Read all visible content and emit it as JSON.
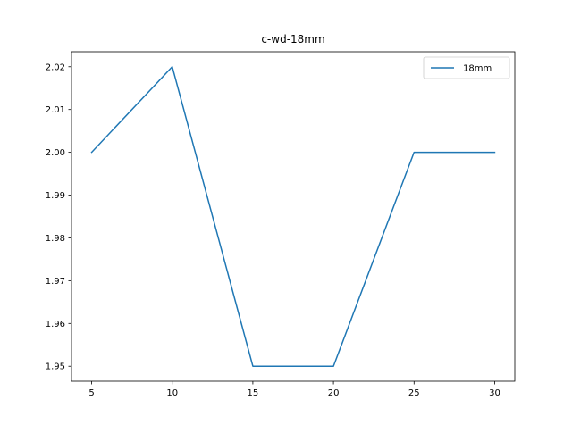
{
  "chart_data": {
    "type": "line",
    "title": "c-wd-18mm",
    "xlabel": "",
    "ylabel": "",
    "x": [
      5,
      10,
      15,
      20,
      25,
      30
    ],
    "series": [
      {
        "name": "18mm",
        "color": "#1f77b4",
        "values": [
          2.0,
          2.02,
          1.95,
          1.95,
          2.0,
          2.0
        ]
      }
    ],
    "xlim": [
      3.75,
      31.25
    ],
    "ylim": [
      1.9465,
      2.0235
    ],
    "x_ticks": [
      5,
      10,
      15,
      20,
      25,
      30
    ],
    "y_ticks": [
      1.95,
      1.96,
      1.97,
      1.98,
      1.99,
      2.0,
      2.01,
      2.02
    ],
    "y_tick_labels": [
      "1.95",
      "1.96",
      "1.97",
      "1.98",
      "1.99",
      "2.00",
      "2.01",
      "2.02"
    ],
    "grid": false,
    "legend_position": "upper right"
  }
}
